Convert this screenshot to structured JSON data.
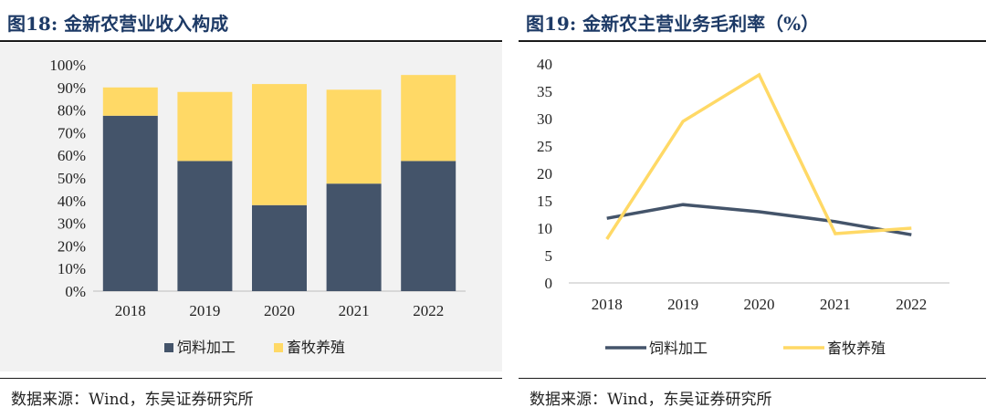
{
  "left": {
    "title": "图18:  金新农营业收入构成",
    "source": "数据来源：Wind，东吴证券研究所",
    "chart_data": {
      "type": "bar",
      "stacked": true,
      "categories": [
        "2018",
        "2019",
        "2020",
        "2021",
        "2022"
      ],
      "series": [
        {
          "name": "饲料加工",
          "values": [
            77.5,
            57.5,
            38.0,
            47.5,
            57.5
          ],
          "color": "#44546a"
        },
        {
          "name": "畜牧养殖",
          "values": [
            12.5,
            30.5,
            53.5,
            41.5,
            38.0
          ],
          "color": "#ffd966"
        }
      ],
      "ylim": [
        0,
        100
      ],
      "yticks": [
        "0%",
        "10%",
        "20%",
        "30%",
        "40%",
        "50%",
        "60%",
        "70%",
        "80%",
        "90%",
        "100%"
      ],
      "legend": "bottom",
      "grid": false
    }
  },
  "right": {
    "title": "图19:  金新农主营业务毛利率（%）",
    "source": "数据来源：Wind，东吴证券研究所",
    "chart_data": {
      "type": "line",
      "categories": [
        "2018",
        "2019",
        "2020",
        "2021",
        "2022"
      ],
      "series": [
        {
          "name": "饲料加工",
          "values": [
            11.8,
            14.3,
            13.0,
            11.2,
            8.8
          ],
          "color": "#44546a"
        },
        {
          "name": "畜牧养殖",
          "values": [
            8.0,
            29.5,
            38.0,
            9.0,
            10.0
          ],
          "color": "#ffd966"
        }
      ],
      "ylim": [
        0,
        40
      ],
      "yticks": [
        "0",
        "5",
        "10",
        "15",
        "20",
        "25",
        "30",
        "35",
        "40"
      ],
      "legend": "bottom",
      "grid": false
    }
  }
}
